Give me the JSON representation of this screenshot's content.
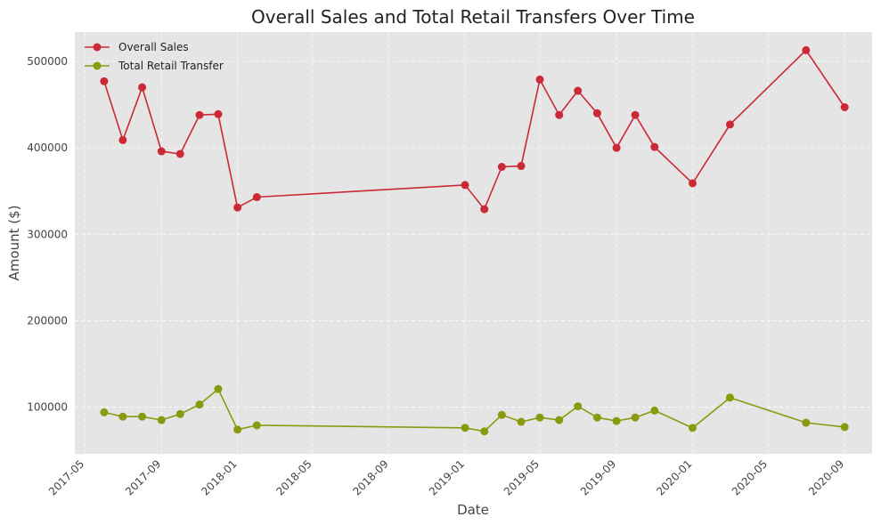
{
  "chart_data": {
    "type": "line",
    "title": "Overall Sales and Total Retail Transfers Over Time",
    "xlabel": "Date",
    "ylabel": "Amount ($)",
    "x": [
      "2017-06-01",
      "2017-07-01",
      "2017-08-01",
      "2017-09-01",
      "2017-10-01",
      "2017-11-01",
      "2017-12-01",
      "2018-01-01",
      "2018-02-01",
      "2019-01-01",
      "2019-02-01",
      "2019-03-01",
      "2019-04-01",
      "2019-05-01",
      "2019-06-01",
      "2019-07-01",
      "2019-08-01",
      "2019-09-01",
      "2019-10-01",
      "2019-11-01",
      "2020-01-01",
      "2020-03-01",
      "2020-07-01",
      "2020-09-01"
    ],
    "series": [
      {
        "name": "Overall Sales",
        "color": "#cc2936",
        "values": [
          477000,
          409000,
          470000,
          396000,
          393000,
          438000,
          439000,
          331000,
          343000,
          357000,
          329000,
          378000,
          379000,
          479000,
          438000,
          466000,
          440000,
          400000,
          438000,
          401000,
          359000,
          427000,
          513000,
          447000
        ]
      },
      {
        "name": "Total Retail Transfer",
        "color": "#8a9a10",
        "values": [
          94000,
          89000,
          89000,
          85000,
          92000,
          103000,
          121000,
          74000,
          79000,
          76000,
          72000,
          91000,
          83000,
          88000,
          85000,
          101000,
          88000,
          84000,
          88000,
          96000,
          76000,
          111000,
          82000,
          77000
        ]
      }
    ],
    "xticks": [
      "2017-05",
      "2017-09",
      "2018-01",
      "2018-05",
      "2018-09",
      "2019-01",
      "2019-05",
      "2019-09",
      "2020-01",
      "2020-05",
      "2020-09"
    ],
    "yticks": [
      100000,
      200000,
      300000,
      400000,
      500000
    ],
    "xlim": [
      "2017-04-15",
      "2020-10-15"
    ],
    "ylim": [
      46000,
      534000
    ],
    "grid": true,
    "legend_position": "upper left",
    "background": "#e5e5e5"
  }
}
